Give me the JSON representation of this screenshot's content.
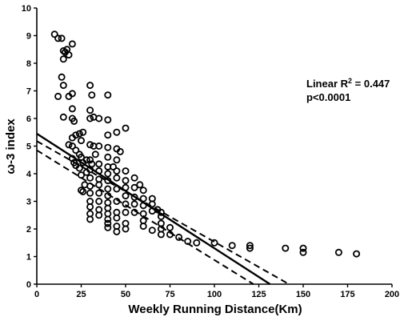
{
  "chart_data": {
    "type": "scatter",
    "xlabel": "Weekly Running Distance(Km)",
    "ylabel": "ω-3 index",
    "xlim": [
      0,
      200
    ],
    "ylim": [
      0,
      10
    ],
    "x_ticks": [
      "0",
      "25",
      "50",
      "75",
      "100",
      "125",
      "150",
      "175",
      "200"
    ],
    "y_ticks": [
      "0",
      "1",
      "2",
      "3",
      "4",
      "5",
      "6",
      "7",
      "8",
      "9",
      "10"
    ],
    "annotation": {
      "line1_prefix": "Linear R",
      "line1_sup": "2",
      "line1_suffix": " = 0.447",
      "line2": "p<0.0001"
    },
    "regression": {
      "slope": -0.0415,
      "intercept": 5.45
    },
    "confidence_band": {
      "upper": [
        [
          0,
          5.18
        ],
        [
          142,
          0
        ]
      ],
      "lower": [
        [
          0,
          4.85
        ],
        [
          122,
          0
        ]
      ]
    },
    "points": [
      [
        10,
        9.05
      ],
      [
        12,
        8.9
      ],
      [
        14,
        8.9
      ],
      [
        15,
        8.45
      ],
      [
        16,
        8.4
      ],
      [
        17,
        8.5
      ],
      [
        15,
        8.15
      ],
      [
        18,
        8.3
      ],
      [
        20,
        8.7
      ],
      [
        14,
        7.5
      ],
      [
        15,
        7.2
      ],
      [
        12,
        6.8
      ],
      [
        18,
        6.8
      ],
      [
        20,
        6.9
      ],
      [
        20,
        6.35
      ],
      [
        15,
        6.05
      ],
      [
        20,
        6.0
      ],
      [
        21,
        5.9
      ],
      [
        18,
        5.05
      ],
      [
        20,
        5.3
      ],
      [
        22,
        5.4
      ],
      [
        24,
        5.45
      ],
      [
        25,
        5.2
      ],
      [
        26,
        5.5
      ],
      [
        20,
        5.0
      ],
      [
        22,
        4.85
      ],
      [
        24,
        4.7
      ],
      [
        20,
        4.55
      ],
      [
        21,
        4.4
      ],
      [
        22,
        4.3
      ],
      [
        24,
        4.2
      ],
      [
        25,
        4.6
      ],
      [
        26,
        4.4
      ],
      [
        25,
        3.95
      ],
      [
        27,
        3.6
      ],
      [
        25,
        3.4
      ],
      [
        26,
        3.35
      ],
      [
        28,
        4.5
      ],
      [
        28,
        4.05
      ],
      [
        30,
        7.2
      ],
      [
        31,
        6.85
      ],
      [
        30,
        6.3
      ],
      [
        32,
        6.05
      ],
      [
        30,
        6.0
      ],
      [
        35,
        6.0
      ],
      [
        30,
        5.05
      ],
      [
        32,
        5.0
      ],
      [
        35,
        5.0
      ],
      [
        33,
        4.7
      ],
      [
        30,
        4.5
      ],
      [
        31,
        4.35
      ],
      [
        30,
        4.15
      ],
      [
        30,
        3.85
      ],
      [
        30,
        3.55
      ],
      [
        30,
        3.3
      ],
      [
        30,
        3.0
      ],
      [
        30,
        2.8
      ],
      [
        30,
        2.55
      ],
      [
        30,
        2.35
      ],
      [
        35,
        4.35
      ],
      [
        35,
        4.1
      ],
      [
        35,
        3.8
      ],
      [
        35,
        3.6
      ],
      [
        35,
        3.3
      ],
      [
        35,
        3.0
      ],
      [
        35,
        2.7
      ],
      [
        35,
        2.5
      ],
      [
        40,
        6.85
      ],
      [
        40,
        5.95
      ],
      [
        40,
        5.4
      ],
      [
        40,
        4.95
      ],
      [
        40,
        4.6
      ],
      [
        40,
        4.25
      ],
      [
        40,
        4.0
      ],
      [
        40,
        3.75
      ],
      [
        40,
        3.45
      ],
      [
        40,
        3.2
      ],
      [
        40,
        2.95
      ],
      [
        40,
        2.75
      ],
      [
        40,
        2.55
      ],
      [
        40,
        2.35
      ],
      [
        40,
        2.2
      ],
      [
        40,
        2.05
      ],
      [
        45,
        5.5
      ],
      [
        45,
        4.5
      ],
      [
        45,
        4.1
      ],
      [
        45,
        3.85
      ],
      [
        45,
        3.45
      ],
      [
        45,
        3.0
      ],
      [
        45,
        2.6
      ],
      [
        45,
        2.4
      ],
      [
        45,
        2.1
      ],
      [
        45,
        1.9
      ],
      [
        45,
        4.9
      ],
      [
        43,
        4.25
      ],
      [
        47,
        4.8
      ],
      [
        50,
        5.65
      ],
      [
        50,
        4.1
      ],
      [
        50,
        3.75
      ],
      [
        50,
        3.5
      ],
      [
        50,
        3.2
      ],
      [
        50,
        2.9
      ],
      [
        50,
        2.6
      ],
      [
        50,
        2.2
      ],
      [
        50,
        2.0
      ],
      [
        55,
        3.85
      ],
      [
        55,
        3.5
      ],
      [
        55,
        3.15
      ],
      [
        55,
        2.9
      ],
      [
        55,
        2.6
      ],
      [
        58,
        3.6
      ],
      [
        60,
        3.4
      ],
      [
        60,
        3.1
      ],
      [
        60,
        2.85
      ],
      [
        60,
        2.55
      ],
      [
        60,
        2.3
      ],
      [
        60,
        2.1
      ],
      [
        65,
        3.1
      ],
      [
        65,
        2.9
      ],
      [
        65,
        2.65
      ],
      [
        68,
        2.7
      ],
      [
        70,
        2.6
      ],
      [
        70,
        2.45
      ],
      [
        70,
        2.2
      ],
      [
        70,
        2.0
      ],
      [
        70,
        1.8
      ],
      [
        65,
        1.95
      ],
      [
        75,
        2.05
      ],
      [
        75,
        1.8
      ],
      [
        80,
        1.7
      ],
      [
        85,
        1.55
      ],
      [
        90,
        1.5
      ],
      [
        100,
        1.5
      ],
      [
        110,
        1.4
      ],
      [
        120,
        1.4
      ],
      [
        120,
        1.3
      ],
      [
        140,
        1.3
      ],
      [
        150,
        1.3
      ],
      [
        150,
        1.15
      ],
      [
        170,
        1.15
      ],
      [
        180,
        1.1
      ]
    ]
  }
}
